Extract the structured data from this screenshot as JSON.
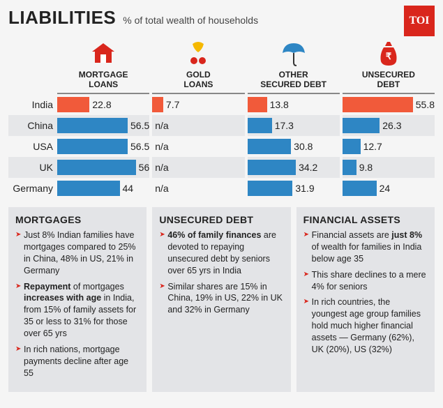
{
  "header": {
    "title": "LIABILITIES",
    "subtitle": "% of total wealth of households",
    "badge": "TOI"
  },
  "colors": {
    "india_bar": "#f15a3a",
    "other_bar": "#2e86c4",
    "badge_bg": "#d9261c",
    "alt_row": "#e6e7e9",
    "note_bg": "#e3e4e7"
  },
  "chart": {
    "bar_max_value": 65,
    "columns": [
      {
        "key": "mortgage",
        "label": "MORTGAGE\nLOANS",
        "icon": "house"
      },
      {
        "key": "gold",
        "label": "GOLD\nLOANS",
        "icon": "gold"
      },
      {
        "key": "other_secured",
        "label": "OTHER\nSECURED DEBT",
        "icon": "umbrella"
      },
      {
        "key": "unsecured",
        "label": "UNSECURED\nDEBT",
        "icon": "moneybag"
      }
    ],
    "countries": [
      {
        "name": "India",
        "highlight": true,
        "values": {
          "mortgage": "22.8",
          "gold": "7.7",
          "other_secured": "13.8",
          "unsecured": "55.8"
        }
      },
      {
        "name": "China",
        "highlight": false,
        "values": {
          "mortgage": "56.5",
          "gold": "n/a",
          "other_secured": "17.3",
          "unsecured": "26.3"
        }
      },
      {
        "name": "USA",
        "highlight": false,
        "values": {
          "mortgage": "56.5",
          "gold": "n/a",
          "other_secured": "30.8",
          "unsecured": "12.7"
        }
      },
      {
        "name": "UK",
        "highlight": false,
        "values": {
          "mortgage": "56",
          "gold": "n/a",
          "other_secured": "34.2",
          "unsecured": "9.8"
        }
      },
      {
        "name": "Germany",
        "highlight": false,
        "values": {
          "mortgage": "44",
          "gold": "n/a",
          "other_secured": "31.9",
          "unsecured": "24"
        }
      }
    ]
  },
  "notes": [
    {
      "heading": "MORTGAGES",
      "bullets": [
        "Just 8% Indian families have mortgages compared to 25% in China, 48% in US, 21% in Germany",
        "<b>Repayment</b> of mortgages <b>increases with age</b> in India, from 15% of family assets for 35 or less to 31% for those over 65 yrs",
        "In rich nations, mortgage payments decline after age 55"
      ]
    },
    {
      "heading": "UNSECURED DEBT",
      "bullets": [
        "<b>46% of family finances</b> are devoted to repaying unsecured debt by seniors over 65 yrs in India",
        "Similar shares are 15% in China, 19% in US, 22% in UK and 32% in Germany"
      ]
    },
    {
      "heading": "FINANCIAL ASSETS",
      "bullets": [
        "Financial assets are <b>just 8%</b> of wealth for families in India below age 35",
        "This share declines to a mere 4% for seniors",
        "In rich countries, the youngest age group families hold much higher financial assets — Germany (62%), UK (20%), US (32%)"
      ]
    }
  ]
}
